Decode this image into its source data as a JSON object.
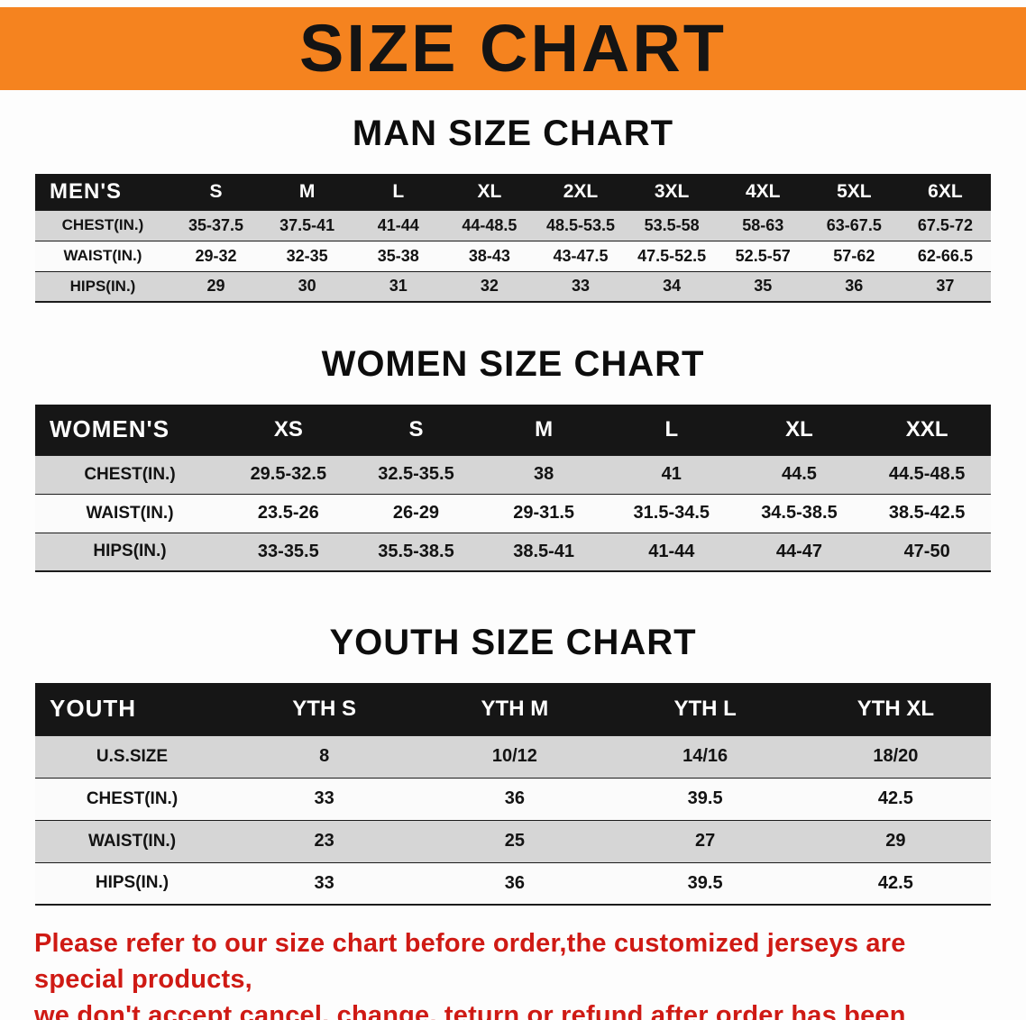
{
  "banner": {
    "title": "SIZE CHART"
  },
  "sections": [
    {
      "title": "MAN SIZE CHART",
      "header_label": "MEN'S",
      "columns": [
        "S",
        "M",
        "L",
        "XL",
        "2XL",
        "3XL",
        "4XL",
        "5XL",
        "6XL"
      ],
      "rows": [
        {
          "label": "CHEST(IN.)",
          "values": [
            "35-37.5",
            "37.5-41",
            "41-44",
            "44-48.5",
            "48.5-53.5",
            "53.5-58",
            "58-63",
            "63-67.5",
            "67.5-72"
          ]
        },
        {
          "label": "WAIST(IN.)",
          "values": [
            "29-32",
            "32-35",
            "35-38",
            "38-43",
            "43-47.5",
            "47.5-52.5",
            "52.5-57",
            "57-62",
            "62-66.5"
          ]
        },
        {
          "label": "HIPS(IN.)",
          "values": [
            "29",
            "30",
            "31",
            "32",
            "33",
            "34",
            "35",
            "36",
            "37"
          ]
        }
      ]
    },
    {
      "title": "WOMEN SIZE CHART",
      "header_label": "WOMEN'S",
      "columns": [
        "XS",
        "S",
        "M",
        "L",
        "XL",
        "XXL"
      ],
      "rows": [
        {
          "label": "CHEST(IN.)",
          "values": [
            "29.5-32.5",
            "32.5-35.5",
            "38",
            "41",
            "44.5",
            "44.5-48.5"
          ]
        },
        {
          "label": "WAIST(IN.)",
          "values": [
            "23.5-26",
            "26-29",
            "29-31.5",
            "31.5-34.5",
            "34.5-38.5",
            "38.5-42.5"
          ]
        },
        {
          "label": "HIPS(IN.)",
          "values": [
            "33-35.5",
            "35.5-38.5",
            "38.5-41",
            "41-44",
            "44-47",
            "47-50"
          ]
        }
      ]
    },
    {
      "title": "YOUTH SIZE CHART",
      "header_label": "YOUTH",
      "columns": [
        "YTH S",
        "YTH M",
        "YTH L",
        "YTH XL"
      ],
      "rows": [
        {
          "label": "U.S.SIZE",
          "values": [
            "8",
            "10/12",
            "14/16",
            "18/20"
          ]
        },
        {
          "label": "CHEST(IN.)",
          "values": [
            "33",
            "36",
            "39.5",
            "42.5"
          ]
        },
        {
          "label": "WAIST(IN.)",
          "values": [
            "23",
            "25",
            "27",
            "29"
          ]
        },
        {
          "label": "HIPS(IN.)",
          "values": [
            "33",
            "36",
            "39.5",
            "42.5"
          ]
        }
      ]
    }
  ],
  "footer": {
    "line1": "Please refer to our size chart before order,the customized jerseys are special products,",
    "line2": "we don't accept cancel, change, teturn or refund after order has been placed!"
  },
  "colors": {
    "banner_bg": "#f5831f",
    "header_bg": "#161616",
    "stripe": "#d6d6d6",
    "footer_text": "#cf1a14"
  }
}
